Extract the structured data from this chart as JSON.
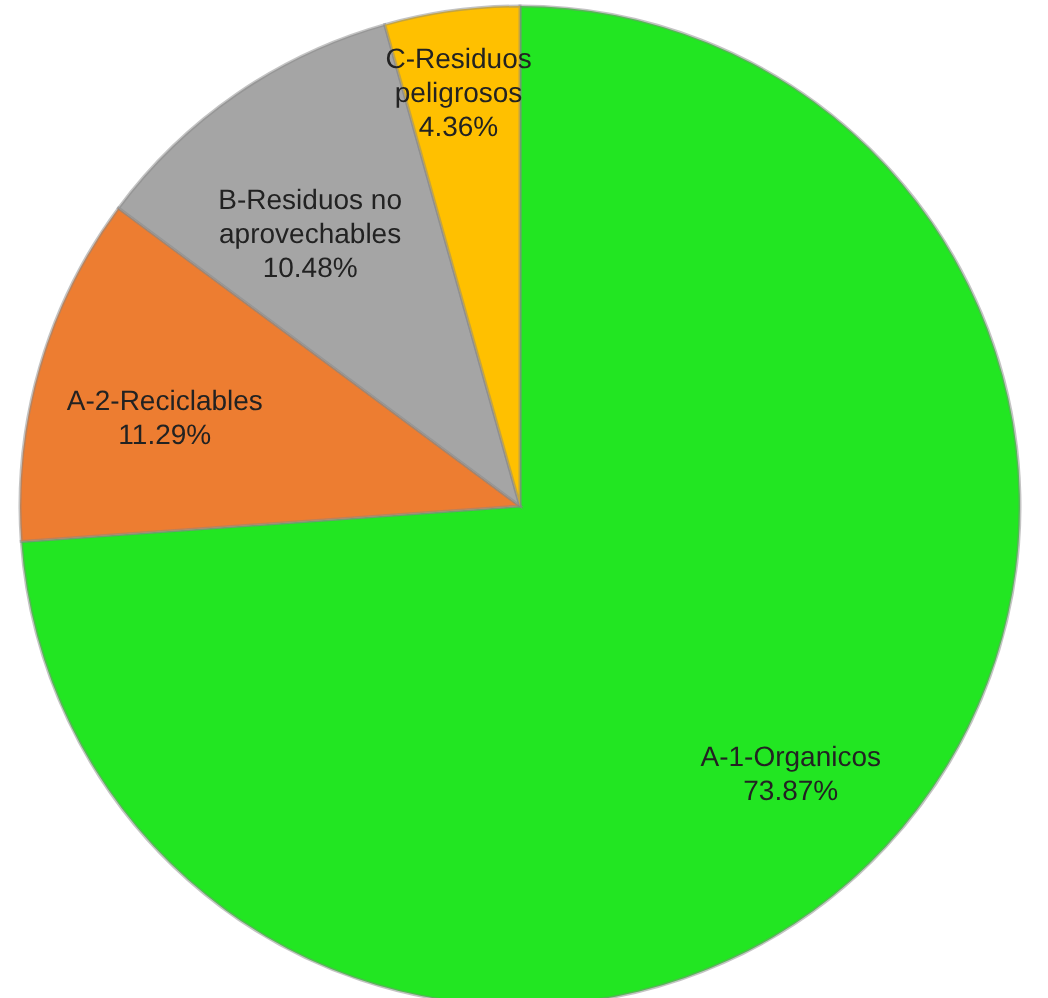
{
  "chart_data": {
    "type": "pie",
    "categories": [
      "A-1-Organicos",
      "A-2-Reciclables",
      "B-Residuos no aprovechables",
      "C-Residuos peligrosos"
    ],
    "values": [
      73.87,
      11.29,
      10.48,
      4.36
    ],
    "colors": [
      "#22e622",
      "#ed7d31",
      "#a5a5a5",
      "#ffc000"
    ],
    "value_labels": [
      "73.87%",
      "11.29%",
      "10.48%",
      "4.36%"
    ],
    "legend": false
  }
}
